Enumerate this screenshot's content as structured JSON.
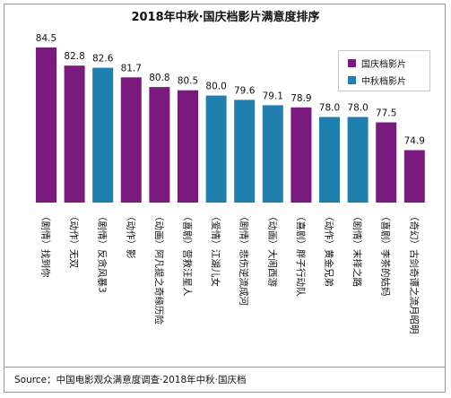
{
  "chart_data": {
    "type": "bar",
    "title": "2018年中秋·国庆档影片满意度排序",
    "categories": [
      "（剧情）找到你",
      "（动作）无双",
      "（剧情）反贪风暴3",
      "（动作）影",
      "（动画）阿凡提之奇缘历险",
      "（喜剧）营救汪星人",
      "（爱情）江湖儿女",
      "（剧情）悲伤逆流成河",
      "（动画）大闹西游",
      "（喜剧）胖子行动队",
      "（动作）黄金兄弟",
      "（剧情）末择之路",
      "（喜剧）李茶的姑妈",
      "（奇幻）古剑奇谭之流月昭明"
    ],
    "values": [
      84.5,
      82.8,
      82.6,
      81.7,
      80.8,
      80.5,
      80.0,
      79.6,
      79.1,
      78.9,
      78.0,
      78.0,
      77.5,
      74.9
    ],
    "value_labels": [
      "84.5",
      "82.8",
      "82.6",
      "81.7",
      "80.8",
      "80.5",
      "80.0",
      "79.6",
      "79.1",
      "78.9",
      "78.0",
      "78.0",
      "77.5",
      "74.9"
    ],
    "series_membership": [
      "国庆档影片",
      "国庆档影片",
      "中秋档影片",
      "国庆档影片",
      "国庆档影片",
      "国庆档影片",
      "中秋档影片",
      "中秋档影片",
      "中秋档影片",
      "国庆档影片",
      "中秋档影片",
      "中秋档影片",
      "国庆档影片",
      "国庆档影片"
    ],
    "series": [
      {
        "name": "国庆档影片",
        "color": "#7b1a7e"
      },
      {
        "name": "中秋档影片",
        "color": "#1f7fae"
      }
    ],
    "ylim": [
      70,
      86
    ],
    "legend_position": "top-right",
    "grid": false
  },
  "source": "Source：中国电影观众满意度调查·2018年中秋·国庆档"
}
